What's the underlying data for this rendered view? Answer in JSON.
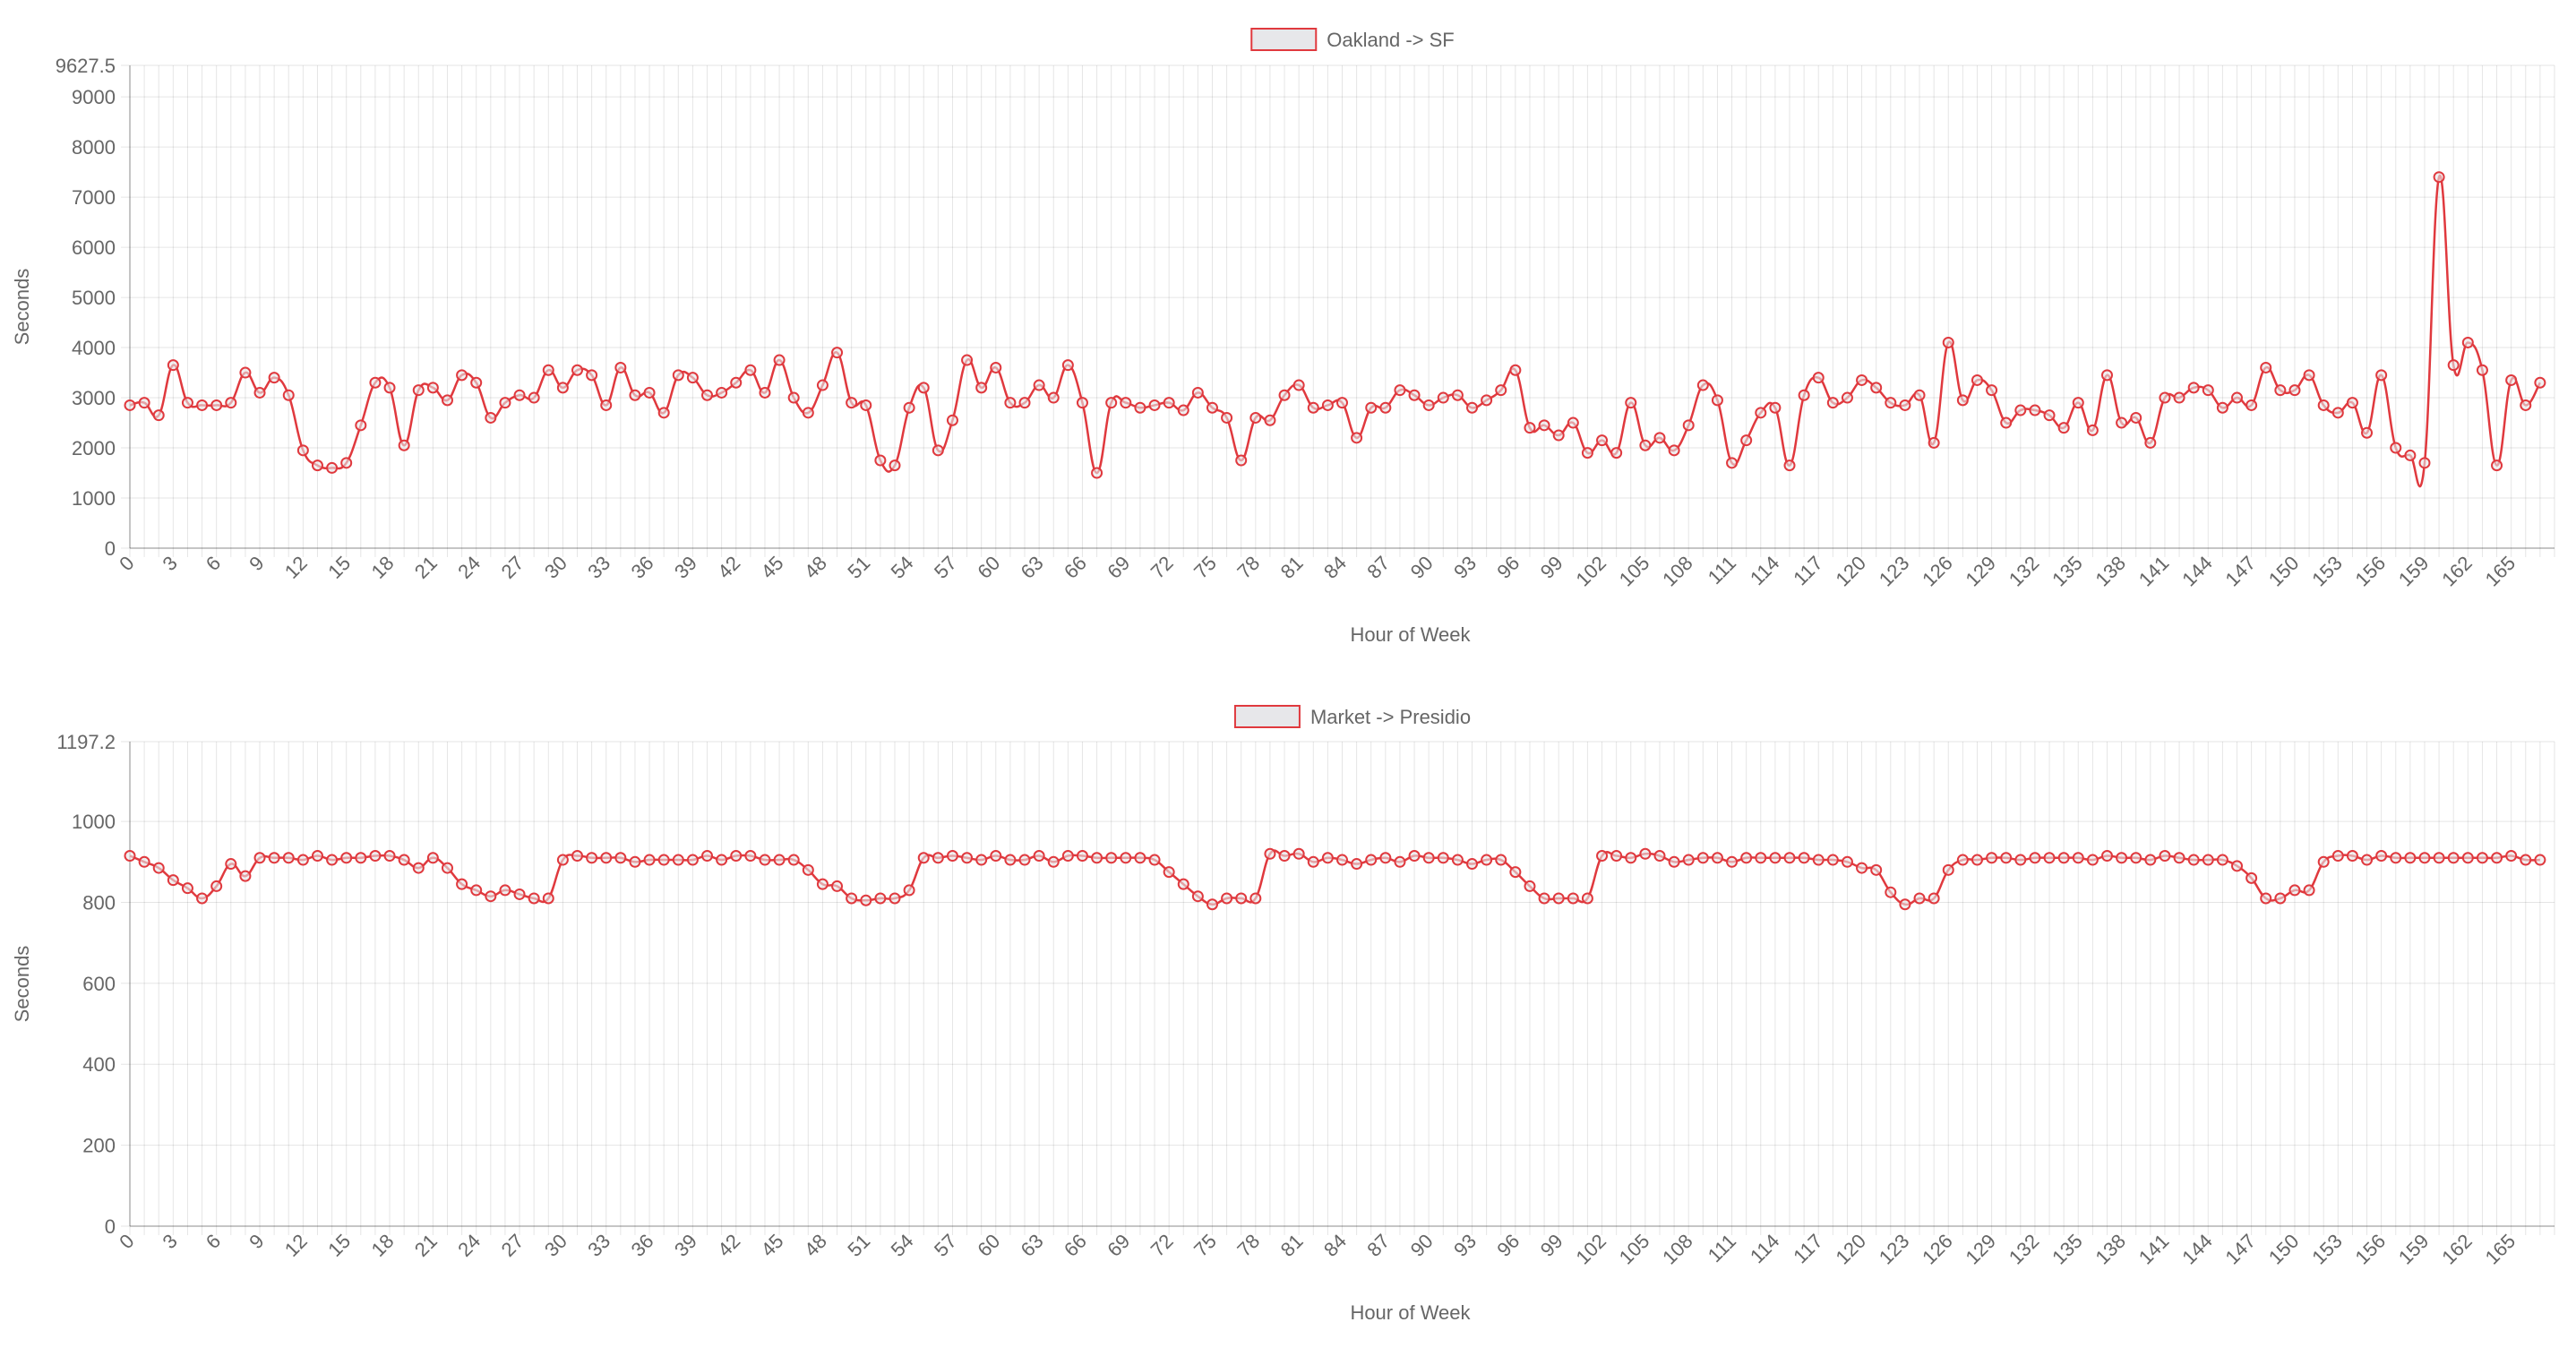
{
  "chart_data": [
    {
      "type": "line",
      "legend_position": "top",
      "grid": true,
      "series": [
        {
          "name": "Oakland -> SF",
          "color": "#e0393e",
          "values": [
            2850,
            2900,
            2650,
            3650,
            2900,
            2850,
            2850,
            2900,
            3500,
            3100,
            3400,
            3050,
            1950,
            1650,
            1600,
            1700,
            2450,
            3300,
            3200,
            2050,
            3150,
            3200,
            2950,
            3450,
            3300,
            2600,
            2900,
            3050,
            3000,
            3550,
            3200,
            3550,
            3450,
            2850,
            3600,
            3050,
            3100,
            2700,
            3450,
            3400,
            3050,
            3100,
            3300,
            3550,
            3100,
            3750,
            3000,
            2700,
            3250,
            3900,
            2900,
            2850,
            1750,
            1650,
            2800,
            3200,
            1950,
            2550,
            3750,
            3200,
            3600,
            2900,
            2900,
            3250,
            3000,
            3650,
            2900,
            1500,
            2900,
            2900,
            2800,
            2850,
            2900,
            2750,
            3100,
            2800,
            2600,
            1750,
            2600,
            2550,
            3050,
            3250,
            2800,
            2850,
            2900,
            2200,
            2800,
            2800,
            3150,
            3050,
            2850,
            3000,
            3050,
            2800,
            2950,
            3150,
            3550,
            2400,
            2450,
            2250,
            2500,
            1900,
            2150,
            1900,
            2900,
            2050,
            2200,
            1950,
            2450,
            3250,
            2950,
            1700,
            2150,
            2700,
            2800,
            1650,
            3050,
            3400,
            2900,
            3000,
            3350,
            3200,
            2900,
            2850,
            3050,
            2100,
            4100,
            2950,
            3350,
            3150,
            2500,
            2750,
            2750,
            2650,
            2400,
            2900,
            2350,
            3450,
            2500,
            2600,
            2100,
            3000,
            3000,
            3200,
            3150,
            2800,
            3000,
            2850,
            3600,
            3150,
            3150,
            3450,
            2850,
            2700,
            2900,
            2300,
            3450,
            2000,
            1850,
            1700,
            7400,
            3650,
            4100,
            3550,
            1650,
            3350,
            2850,
            3300
          ]
        }
      ],
      "x_start": 0,
      "x_tick_step": 3,
      "x_tick_labels": [
        "0",
        "3",
        "6",
        "9",
        "12",
        "15",
        "18",
        "21",
        "24",
        "27",
        "30",
        "33",
        "36",
        "39",
        "42",
        "45",
        "48",
        "51",
        "54",
        "57",
        "60",
        "63",
        "66",
        "69",
        "72",
        "75",
        "78",
        "81",
        "84",
        "87",
        "90",
        "93",
        "96",
        "99",
        "102",
        "105",
        "108",
        "111",
        "114",
        "117",
        "120",
        "123",
        "126",
        "129",
        "132",
        "135",
        "138",
        "141",
        "144",
        "147",
        "150",
        "153",
        "156",
        "159",
        "162",
        "165"
      ],
      "y_tick_values": [
        0,
        1000,
        2000,
        3000,
        4000,
        5000,
        6000,
        7000,
        8000,
        9000,
        9627.5
      ],
      "y_tick_labels": [
        "0",
        "1000",
        "2000",
        "3000",
        "4000",
        "5000",
        "6000",
        "7000",
        "8000",
        "9000",
        "9627.5"
      ],
      "ylim": [
        0,
        9627.5
      ],
      "xlabel": "Hour of Week",
      "ylabel": "Seconds"
    },
    {
      "type": "line",
      "legend_position": "top",
      "grid": true,
      "series": [
        {
          "name": "Market -> Presidio",
          "color": "#e0393e",
          "values": [
            915,
            900,
            885,
            855,
            835,
            810,
            840,
            895,
            865,
            910,
            910,
            910,
            905,
            915,
            905,
            910,
            910,
            915,
            915,
            905,
            885,
            910,
            885,
            845,
            830,
            815,
            830,
            820,
            810,
            810,
            905,
            915,
            910,
            910,
            910,
            900,
            905,
            905,
            905,
            905,
            915,
            905,
            915,
            915,
            905,
            905,
            905,
            880,
            845,
            840,
            810,
            805,
            810,
            810,
            830,
            910,
            910,
            915,
            910,
            905,
            915,
            905,
            905,
            915,
            900,
            915,
            915,
            910,
            910,
            910,
            910,
            905,
            875,
            845,
            815,
            795,
            810,
            810,
            810,
            920,
            915,
            920,
            900,
            910,
            905,
            895,
            905,
            910,
            900,
            915,
            910,
            910,
            905,
            895,
            905,
            905,
            875,
            840,
            810,
            810,
            810,
            810,
            915,
            915,
            910,
            920,
            915,
            900,
            905,
            910,
            910,
            900,
            910,
            910,
            910,
            910,
            910,
            905,
            905,
            900,
            885,
            880,
            825,
            795,
            810,
            810,
            880,
            905,
            905,
            910,
            910,
            905,
            910,
            910,
            910,
            910,
            905,
            915,
            910,
            910,
            905,
            915,
            910,
            905,
            905,
            905,
            890,
            860,
            810,
            810,
            830,
            830,
            900,
            915,
            915,
            905,
            915,
            910,
            910,
            910,
            910,
            910,
            910,
            910,
            910,
            915,
            905,
            905
          ]
        }
      ],
      "x_start": 0,
      "x_tick_step": 3,
      "x_tick_labels": [
        "0",
        "3",
        "6",
        "9",
        "12",
        "15",
        "18",
        "21",
        "24",
        "27",
        "30",
        "33",
        "36",
        "39",
        "42",
        "45",
        "48",
        "51",
        "54",
        "57",
        "60",
        "63",
        "66",
        "69",
        "72",
        "75",
        "78",
        "81",
        "84",
        "87",
        "90",
        "93",
        "96",
        "99",
        "102",
        "105",
        "108",
        "111",
        "114",
        "117",
        "120",
        "123",
        "126",
        "129",
        "132",
        "135",
        "138",
        "141",
        "144",
        "147",
        "150",
        "153",
        "156",
        "159",
        "162",
        "165"
      ],
      "y_tick_values": [
        0,
        200,
        400,
        600,
        800,
        1000,
        1197.2
      ],
      "y_tick_labels": [
        "0",
        "200",
        "400",
        "600",
        "800",
        "1000",
        "1197.2"
      ],
      "ylim": [
        0,
        1197.2
      ],
      "xlabel": "Hour of Week",
      "ylabel": "Seconds"
    }
  ]
}
